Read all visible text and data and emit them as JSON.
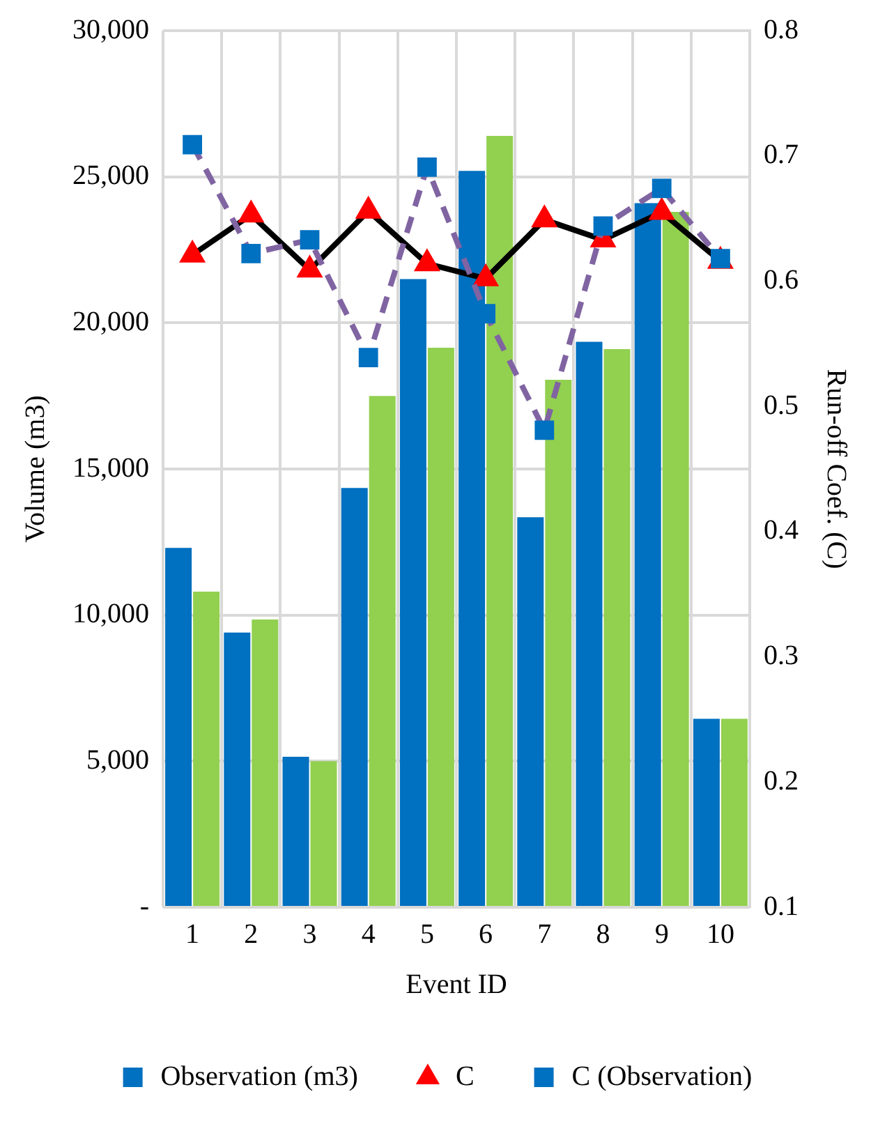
{
  "chart_data": {
    "type": "bar",
    "xlabel": "Event ID",
    "ylabel": "Volume (m3)",
    "y2label": "Run-off Coef. (C)",
    "categories": [
      "1",
      "2",
      "3",
      "4",
      "5",
      "6",
      "7",
      "8",
      "9",
      "10"
    ],
    "series": [
      {
        "name": "Observation (m3)",
        "color": "#0070c0",
        "values": [
          12300,
          9400,
          5150,
          14350,
          21500,
          25200,
          13350,
          19350,
          24100,
          6450
        ]
      },
      {
        "color": "#92d050",
        "values": [
          10800,
          9850,
          5000,
          17500,
          19150,
          26400,
          18050,
          19100,
          23800,
          6450
        ]
      },
      {
        "name": "C",
        "type": "line",
        "axis": "y2",
        "color": "#000000",
        "colors": [
          "#ff0000",
          "#ff0000",
          "#ff0000",
          "#ff0000",
          "#ff0000",
          "#ff0000",
          "#ff0000",
          "#ff0000",
          "#ff0000",
          "#ff0000"
        ],
        "marker": "triangle",
        "line_style": "solid",
        "values": [
          0.621,
          0.653,
          0.609,
          0.656,
          0.614,
          0.602,
          0.649,
          0.633,
          0.655,
          0.616
        ]
      },
      {
        "name": "C (Observation)",
        "type": "line",
        "axis": "y2",
        "color": "#8064a2",
        "colors": [
          "#0070c0",
          "#0070c0",
          "#0070c0",
          "#0070c0",
          "#0070c0",
          "#0070c0",
          "#0070c0",
          "#0070c0",
          "#0070c0",
          "#0070c0"
        ],
        "marker": "square",
        "line_style": "dashed",
        "values": [
          0.709,
          0.622,
          0.633,
          0.539,
          0.691,
          0.574,
          0.481,
          0.644,
          0.674,
          0.618
        ]
      }
    ],
    "ylim": [
      0,
      30000
    ],
    "yticks": [
      {
        "value": 0,
        "label": "-"
      },
      {
        "value": 5000,
        "label": "5,000"
      },
      {
        "value": 10000,
        "label": "10,000"
      },
      {
        "value": 15000,
        "label": "15,000"
      },
      {
        "value": 20000,
        "label": "20,000"
      },
      {
        "value": 25000,
        "label": "25,000"
      },
      {
        "value": 30000,
        "label": "30,000"
      }
    ],
    "y2lim": [
      0.1,
      0.8
    ],
    "y2ticks": [
      0.1,
      0.2,
      0.3,
      0.4,
      0.5,
      0.6,
      0.7,
      0.8
    ],
    "grid": true,
    "legend": "bottom"
  }
}
